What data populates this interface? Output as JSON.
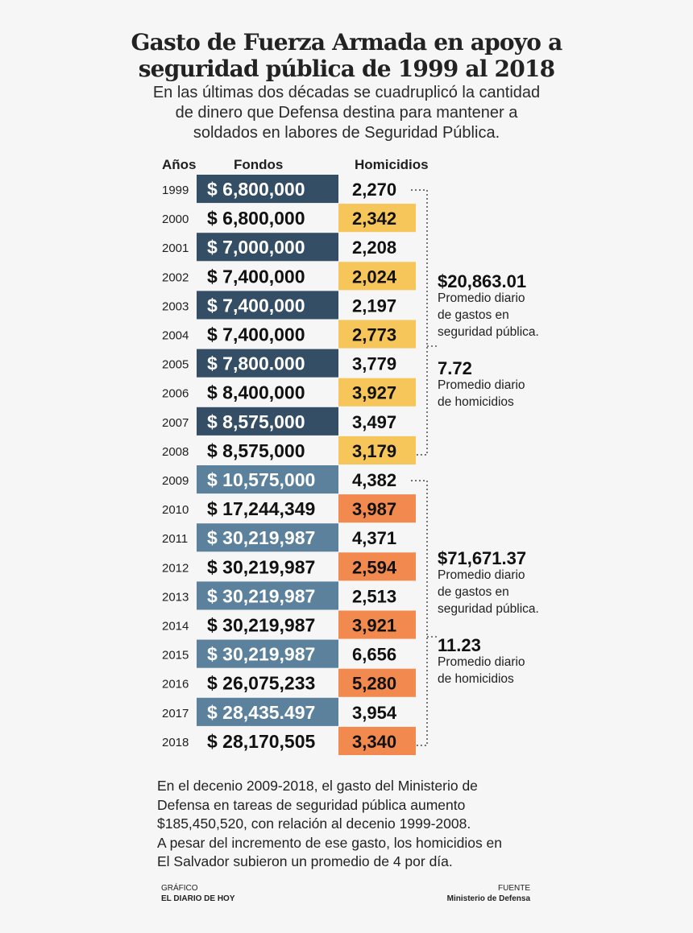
{
  "title_line1": "Gasto de Fuerza Armada en apoyo a",
  "title_line2": "seguridad pública de 1999 al 2018",
  "subtitle_line1": "En las últimas dos décadas se cuadruplicó la cantidad",
  "subtitle_line2": "de dinero que Defensa destina para mantener a",
  "subtitle_line3": "soldados en labores de Seguridad Pública.",
  "colors": {
    "navy": "#344e66",
    "steel": "#5c819d",
    "yellow": "#f7c65a",
    "orange": "#f28a50"
  },
  "chart_data": {
    "type": "table",
    "columns": [
      "Años",
      "Fondos",
      "Homicidios"
    ],
    "years": [
      "1999",
      "2000",
      "2001",
      "2002",
      "2003",
      "2004",
      "2005",
      "2006",
      "2007",
      "2008",
      "2009",
      "2010",
      "2011",
      "2012",
      "2013",
      "2014",
      "2015",
      "2016",
      "2017",
      "2018"
    ],
    "fondos": [
      "$ 6,800,000",
      "$ 6,800,000",
      "$ 7,000,000",
      "$ 7,400,000",
      "$ 7,400,000",
      "$ 7,400,000",
      "$ 7,800.000",
      "$ 8,400,000",
      "$ 8,575,000",
      "$ 8,575,000",
      "$ 10,575,000",
      "$ 17,244,349",
      "$ 30,219,987",
      "$ 30,219,987",
      "$ 30,219,987",
      "$ 30,219,987",
      "$ 30,219,987",
      "$ 26,075,233",
      "$ 28,435.497",
      "$ 28,170,505"
    ],
    "homicidios": [
      "2,270",
      "2,342",
      "2,208",
      "2,024",
      "2,197",
      "2,773",
      "3,779",
      "3,927",
      "3,497",
      "3,179",
      "4,382",
      "3,987",
      "4,371",
      "2,594",
      "2,513",
      "3,921",
      "6,656",
      "5,280",
      "3,954",
      "3,340"
    ],
    "groups": [
      {
        "years": "1999-2008",
        "avg_spending": "$20,863.01",
        "avg_spending_label": [
          "Promedio diario",
          "de gastos en",
          "seguridad pública."
        ],
        "avg_homicides": "7.72",
        "avg_homicides_label": [
          "Promedio diario",
          "de homicidios"
        ]
      },
      {
        "years": "2009-2018",
        "avg_spending": "$71,671.37",
        "avg_spending_label": [
          "Promedio diario",
          "de gastos en",
          "seguridad pública."
        ],
        "avg_homicides": "11.23",
        "avg_homicides_label": [
          "Promedio diario",
          "de homicidios"
        ]
      }
    ]
  },
  "note_lines": [
    "En el decenio 2009-2018, el gasto del Ministerio de",
    "Defensa en tareas de seguridad pública aumento",
    "$185,450,520, con relación al decenio 1999-2008.",
    "A pesar del incremento de ese gasto, los homicidios en",
    "El Salvador subieron un promedio de 4 por día."
  ],
  "credit_left_label": "GRÁFICO",
  "credit_left_value": "EL DIARIO DE HOY",
  "credit_right_label": "FUENTE",
  "credit_right_value": "Ministerio de Defensa"
}
